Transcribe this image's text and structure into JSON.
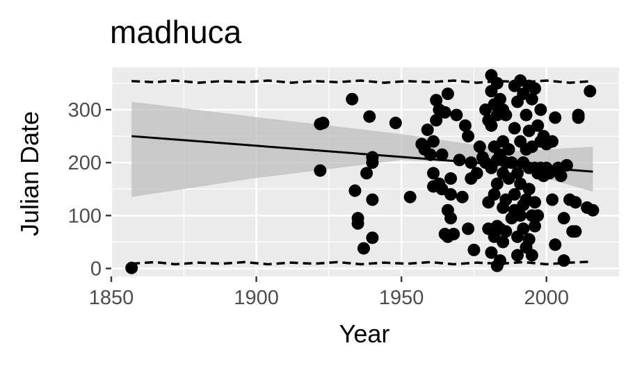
{
  "chart_data": {
    "type": "scatter",
    "title": "madhuca",
    "xlabel": "Year",
    "ylabel": "Julian Date",
    "xlim": [
      1850,
      2025
    ],
    "ylim": [
      -15,
      380
    ],
    "x_ticks": [
      1850,
      1900,
      1950,
      2000
    ],
    "x_tick_labels": [
      "1850",
      "1900",
      "1950",
      "2000"
    ],
    "y_ticks": [
      0,
      100,
      200,
      300
    ],
    "y_tick_labels": [
      "0",
      "100",
      "200",
      "300"
    ],
    "grid": true,
    "legend": "none",
    "colors": {
      "panel": "#ebebeb",
      "grid": "#ffffff",
      "points": "#000000",
      "ribbon": "#bdbdbd",
      "axis_text": "#4d4d4d"
    },
    "points": [
      [
        1857,
        1
      ],
      [
        1922,
        185
      ],
      [
        1922,
        273
      ],
      [
        1923,
        275
      ],
      [
        1933,
        320
      ],
      [
        1934,
        147
      ],
      [
        1935,
        95
      ],
      [
        1935,
        85
      ],
      [
        1937,
        38
      ],
      [
        1938,
        180
      ],
      [
        1939,
        287
      ],
      [
        1940,
        210
      ],
      [
        1940,
        200
      ],
      [
        1940,
        130
      ],
      [
        1940,
        58
      ],
      [
        1948,
        275
      ],
      [
        1953,
        135
      ],
      [
        1957,
        235
      ],
      [
        1958,
        225
      ],
      [
        1959,
        262
      ],
      [
        1960,
        215
      ],
      [
        1961,
        240
      ],
      [
        1961,
        180
      ],
      [
        1961,
        155
      ],
      [
        1962,
        318
      ],
      [
        1962,
        280
      ],
      [
        1963,
        300
      ],
      [
        1963,
        160
      ],
      [
        1964,
        215
      ],
      [
        1964,
        150
      ],
      [
        1965,
        295
      ],
      [
        1965,
        65
      ],
      [
        1966,
        330
      ],
      [
        1966,
        110
      ],
      [
        1966,
        60
      ],
      [
        1967,
        170
      ],
      [
        1967,
        140
      ],
      [
        1967,
        95
      ],
      [
        1968,
        65
      ],
      [
        1969,
        290
      ],
      [
        1970,
        205
      ],
      [
        1971,
        135
      ],
      [
        1972,
        270
      ],
      [
        1973,
        250
      ],
      [
        1973,
        75
      ],
      [
        1974,
        200
      ],
      [
        1974,
        170
      ],
      [
        1975,
        35
      ],
      [
        1976,
        180
      ],
      [
        1977,
        230
      ],
      [
        1978,
        210
      ],
      [
        1979,
        300
      ],
      [
        1979,
        200
      ],
      [
        1980,
        280
      ],
      [
        1980,
        125
      ],
      [
        1980,
        75
      ],
      [
        1981,
        365
      ],
      [
        1981,
        335
      ],
      [
        1981,
        270
      ],
      [
        1981,
        190
      ],
      [
        1981,
        30
      ],
      [
        1982,
        310
      ],
      [
        1982,
        230
      ],
      [
        1982,
        140
      ],
      [
        1982,
        60
      ],
      [
        1983,
        350
      ],
      [
        1983,
        290
      ],
      [
        1983,
        205
      ],
      [
        1983,
        160
      ],
      [
        1983,
        80
      ],
      [
        1983,
        5
      ],
      [
        1984,
        320
      ],
      [
        1984,
        215
      ],
      [
        1984,
        75
      ],
      [
        1984,
        15
      ],
      [
        1985,
        300
      ],
      [
        1985,
        240
      ],
      [
        1985,
        180
      ],
      [
        1985,
        115
      ],
      [
        1985,
        50
      ],
      [
        1986,
        290
      ],
      [
        1986,
        200
      ],
      [
        1986,
        130
      ],
      [
        1986,
        70
      ],
      [
        1987,
        225
      ],
      [
        1987,
        170
      ],
      [
        1988,
        200
      ],
      [
        1988,
        95
      ],
      [
        1989,
        345
      ],
      [
        1989,
        265
      ],
      [
        1989,
        140
      ],
      [
        1989,
        110
      ],
      [
        1990,
        315
      ],
      [
        1990,
        180
      ],
      [
        1990,
        60
      ],
      [
        1990,
        25
      ],
      [
        1991,
        355
      ],
      [
        1991,
        240
      ],
      [
        1991,
        160
      ],
      [
        1991,
        100
      ],
      [
        1992,
        330
      ],
      [
        1992,
        200
      ],
      [
        1992,
        120
      ],
      [
        1992,
        75
      ],
      [
        1993,
        290
      ],
      [
        1993,
        225
      ],
      [
        1993,
        130
      ],
      [
        1993,
        40
      ],
      [
        1994,
        345
      ],
      [
        1994,
        260
      ],
      [
        1994,
        190
      ],
      [
        1994,
        150
      ],
      [
        1994,
        55
      ],
      [
        1995,
        320
      ],
      [
        1995,
        230
      ],
      [
        1995,
        100
      ],
      [
        1995,
        25
      ],
      [
        1996,
        340
      ],
      [
        1996,
        190
      ],
      [
        1996,
        125
      ],
      [
        1996,
        80
      ],
      [
        1997,
        270
      ],
      [
        1997,
        180
      ],
      [
        1997,
        100
      ],
      [
        1998,
        300
      ],
      [
        1998,
        240
      ],
      [
        1998,
        190
      ],
      [
        1999,
        250
      ],
      [
        1999,
        175
      ],
      [
        2000,
        235
      ],
      [
        2000,
        190
      ],
      [
        2001,
        180
      ],
      [
        2002,
        240
      ],
      [
        2002,
        130
      ],
      [
        2003,
        285
      ],
      [
        2003,
        45
      ],
      [
        2004,
        190
      ],
      [
        2005,
        175
      ],
      [
        2006,
        95
      ],
      [
        2006,
        15
      ],
      [
        2007,
        195
      ],
      [
        2008,
        130
      ],
      [
        2009,
        70
      ],
      [
        2010,
        125
      ],
      [
        2010,
        70
      ],
      [
        2011,
        290
      ],
      [
        2011,
        285
      ],
      [
        2014,
        115
      ],
      [
        2015,
        335
      ],
      [
        2016,
        110
      ]
    ],
    "fit_line": [
      [
        1857,
        250
      ],
      [
        2016,
        183
      ]
    ],
    "ribbon_upper": [
      [
        1857,
        315
      ],
      [
        1900,
        286
      ],
      [
        1950,
        254
      ],
      [
        1970,
        238
      ],
      [
        1990,
        222
      ],
      [
        2016,
        230
      ]
    ],
    "ribbon_lower": [
      [
        1857,
        135
      ],
      [
        1900,
        171
      ],
      [
        1950,
        205
      ],
      [
        1970,
        200
      ],
      [
        1990,
        186
      ],
      [
        2016,
        145
      ]
    ],
    "upper_dashed": [
      [
        1857,
        354
      ],
      [
        1865,
        352
      ],
      [
        1872,
        355
      ],
      [
        1880,
        351
      ],
      [
        1888,
        354
      ],
      [
        1896,
        352
      ],
      [
        1904,
        355
      ],
      [
        1912,
        351
      ],
      [
        1920,
        354
      ],
      [
        1928,
        352
      ],
      [
        1936,
        355
      ],
      [
        1944,
        351
      ],
      [
        1952,
        354
      ],
      [
        1960,
        352
      ],
      [
        1968,
        355
      ],
      [
        1976,
        351
      ],
      [
        1984,
        354
      ],
      [
        1992,
        352
      ],
      [
        2000,
        355
      ],
      [
        2008,
        351
      ],
      [
        2016,
        354
      ]
    ],
    "lower_dashed": [
      [
        1857,
        9
      ],
      [
        1865,
        12
      ],
      [
        1872,
        8
      ],
      [
        1880,
        11
      ],
      [
        1888,
        9
      ],
      [
        1896,
        12
      ],
      [
        1904,
        8
      ],
      [
        1912,
        11
      ],
      [
        1920,
        9
      ],
      [
        1928,
        12
      ],
      [
        1936,
        8
      ],
      [
        1944,
        11
      ],
      [
        1952,
        9
      ],
      [
        1960,
        12
      ],
      [
        1968,
        8
      ],
      [
        1976,
        11
      ],
      [
        1984,
        9
      ],
      [
        1992,
        12
      ],
      [
        2000,
        8
      ],
      [
        2008,
        11
      ],
      [
        2016,
        13
      ]
    ]
  }
}
